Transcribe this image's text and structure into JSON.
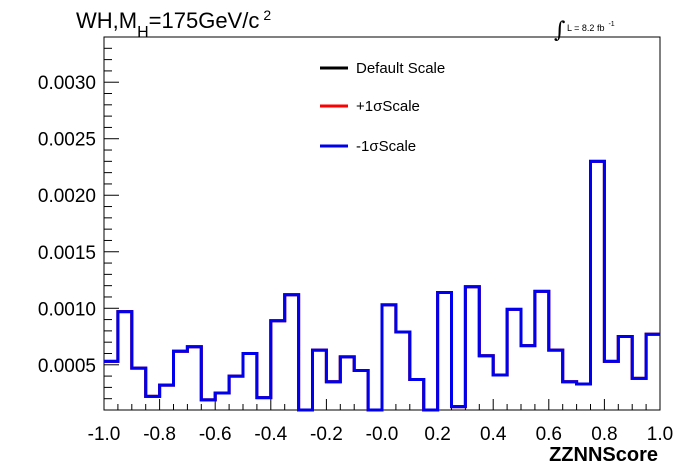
{
  "chart_data": {
    "type": "line",
    "title": {
      "main": "WH,M",
      "sub": "H",
      "rest": "=175GeV/c",
      "sup": "2"
    },
    "luminosity": {
      "integral": "∫",
      "text": "L = 8.2 fb",
      "sup": "-1"
    },
    "xlabel": "ZZNNScore",
    "ylabel": "",
    "xlim": [
      -1.0,
      1.0
    ],
    "ylim": [
      0.0001,
      0.0034
    ],
    "x_tick_labels": [
      "-1.0",
      "-0.8",
      "-0.6",
      "-0.4",
      "-0.2",
      "-0.0",
      "0.2",
      "0.4",
      "0.6",
      "0.8",
      "1.0"
    ],
    "x_tick_values": [
      -1.0,
      -0.8,
      -0.6,
      -0.4,
      -0.2,
      0.0,
      0.2,
      0.4,
      0.6,
      0.8,
      1.0
    ],
    "y_tick_labels": [
      "0.0005",
      "0.0010",
      "0.0015",
      "0.0020",
      "0.0025",
      "0.0030"
    ],
    "y_tick_values": [
      0.0005,
      0.001,
      0.0015,
      0.002,
      0.0025,
      0.003
    ],
    "bin_edges_start": -1.0,
    "bin_width": 0.05,
    "series": [
      {
        "name": "Default Scale",
        "color": "#000000",
        "values": [
          0.00053,
          0.00097,
          0.00047,
          0.00022,
          0.00032,
          0.00062,
          0.00066,
          0.00019,
          0.00025,
          0.0004,
          0.0006,
          0.00021,
          0.00089,
          0.00112,
          0.0001,
          0.00063,
          0.00035,
          0.00057,
          0.00045,
          0.0001,
          0.00103,
          0.00079,
          0.00037,
          0.0001,
          0.00114,
          0.00013,
          0.00119,
          0.00058,
          0.00041,
          0.00099,
          0.00067,
          0.00115,
          0.00063,
          0.00035,
          0.00033,
          0.0023,
          0.00053,
          0.00075,
          0.00038,
          0.00077
        ]
      },
      {
        "name": "+1σScale",
        "color": "#ff0000",
        "values": [
          0.00053,
          0.00097,
          0.00047,
          0.00022,
          0.00032,
          0.00062,
          0.00066,
          0.00019,
          0.00025,
          0.0004,
          0.0006,
          0.00021,
          0.00089,
          0.00112,
          0.0001,
          0.00063,
          0.00035,
          0.00057,
          0.00045,
          0.0001,
          0.00103,
          0.00079,
          0.00037,
          0.0001,
          0.00114,
          0.00013,
          0.00119,
          0.00058,
          0.00041,
          0.00099,
          0.00067,
          0.00115,
          0.00063,
          0.00035,
          0.00033,
          0.0023,
          0.00053,
          0.00075,
          0.00038,
          0.00077
        ]
      },
      {
        "name": "-1σScale",
        "color": "#0000ee",
        "values": [
          0.00053,
          0.00097,
          0.00047,
          0.00022,
          0.00032,
          0.00062,
          0.00066,
          0.00019,
          0.00025,
          0.0004,
          0.0006,
          0.00021,
          0.00089,
          0.00112,
          0.0001,
          0.00063,
          0.00035,
          0.00057,
          0.00045,
          0.0001,
          0.00103,
          0.00079,
          0.00037,
          0.0001,
          0.00114,
          0.00013,
          0.00119,
          0.00058,
          0.00041,
          0.00099,
          0.00067,
          0.00115,
          0.00063,
          0.00035,
          0.00033,
          0.0023,
          0.00053,
          0.00075,
          0.00038,
          0.00077
        ]
      }
    ],
    "legend_position": "top-center",
    "grid": false
  }
}
